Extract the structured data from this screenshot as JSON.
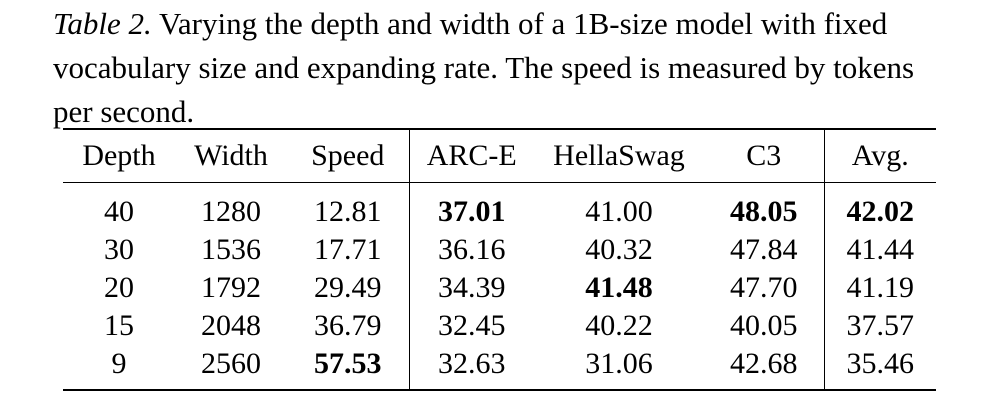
{
  "caption": {
    "label": "Table 2.",
    "text": " Varying the depth and width of a 1B-size model with fixed vocabulary size and expanding rate.  The speed is measured by tokens per second."
  },
  "table": {
    "headers": [
      "Depth",
      "Width",
      "Speed",
      "ARC-E",
      "HellaSwag",
      "C3",
      "Avg."
    ],
    "rows": [
      [
        "40",
        "1280",
        "12.81",
        "37.01",
        "41.00",
        "48.05",
        "42.02"
      ],
      [
        "30",
        "1536",
        "17.71",
        "36.16",
        "40.32",
        "47.84",
        "41.44"
      ],
      [
        "20",
        "1792",
        "29.49",
        "34.39",
        "41.48",
        "47.70",
        "41.19"
      ],
      [
        "15",
        "2048",
        "36.79",
        "32.45",
        "40.22",
        "40.05",
        "37.57"
      ],
      [
        "9",
        "2560",
        "57.53",
        "32.63",
        "31.06",
        "42.68",
        "35.46"
      ]
    ]
  }
}
